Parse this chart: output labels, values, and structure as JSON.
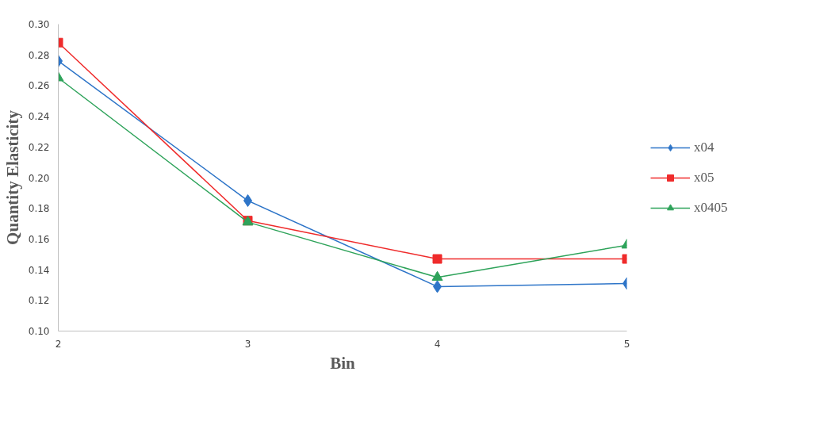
{
  "chart_data": {
    "type": "line",
    "xlabel": "Bin",
    "ylabel": "Quantity Elasticity",
    "x": [
      2,
      3,
      4,
      5
    ],
    "series": [
      {
        "name": "x04",
        "color": "#2e75c8",
        "marker": "diamond",
        "values": [
          0.276,
          0.185,
          0.129,
          0.131
        ]
      },
      {
        "name": "x05",
        "color": "#ef2b2b",
        "marker": "square",
        "values": [
          0.288,
          0.172,
          0.147,
          0.147
        ]
      },
      {
        "name": "x0405",
        "color": "#2ea35a",
        "marker": "triangle",
        "values": [
          0.265,
          0.171,
          0.135,
          0.156
        ]
      }
    ],
    "xlim": [
      2,
      5
    ],
    "xticks": [
      2,
      3,
      4,
      5
    ],
    "ylim": [
      0.1,
      0.3
    ],
    "yticks": [
      {
        "value": 0.1,
        "label": "0.10"
      },
      {
        "value": 0.12,
        "label": "0.12"
      },
      {
        "value": 0.14,
        "label": "0.14"
      },
      {
        "value": 0.16,
        "label": "0.16"
      },
      {
        "value": 0.18,
        "label": "0.18"
      },
      {
        "value": 0.2,
        "label": "0.20"
      },
      {
        "value": 0.22,
        "label": "0.22"
      },
      {
        "value": 0.24,
        "label": "0.24"
      },
      {
        "value": 0.26,
        "label": "0.26"
      },
      {
        "value": 0.28,
        "label": "0.28"
      },
      {
        "value": 0.3,
        "label": "0.30"
      }
    ],
    "grid": false,
    "legend": "right",
    "line_style": "solid"
  }
}
